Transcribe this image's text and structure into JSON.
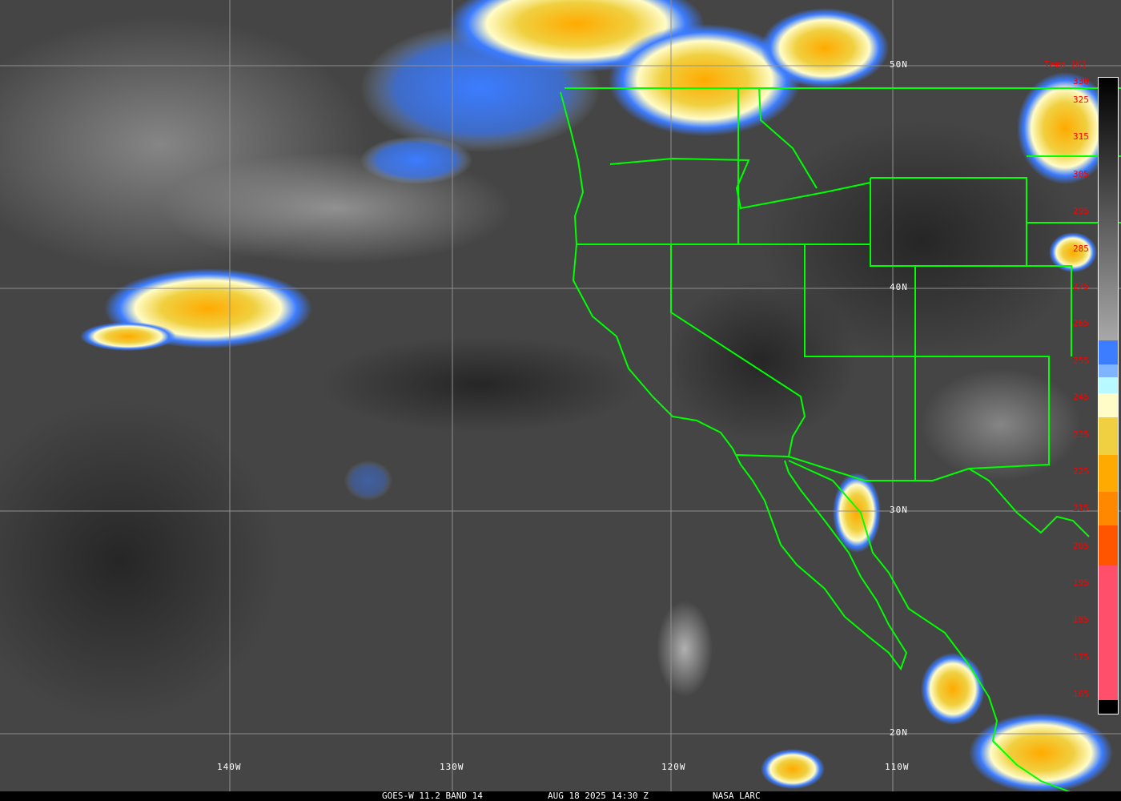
{
  "caption": {
    "satellite": "GOES-W 11.2 BAND 14",
    "datetime": "AUG 18 2025 14:30 Z",
    "source": "NASA LARC"
  },
  "grid": {
    "latitudes": [
      "50N",
      "40N",
      "30N",
      "20N"
    ],
    "longitudes": [
      "140W",
      "130W",
      "120W",
      "110W"
    ]
  },
  "legend": {
    "title": "Temp [K]",
    "ticks": [
      "330",
      "325",
      "315",
      "305",
      "295",
      "285",
      "275",
      "265",
      "255",
      "245",
      "235",
      "225",
      "215",
      "205",
      "195",
      "185",
      "175",
      "165"
    ],
    "colors": {
      "gray_top": "#000000",
      "gray_bottom": "#a8a8a8",
      "blue": "#3c7cff",
      "light_blue": "#7fb4ff",
      "cyan": "#b8f8ff",
      "cream": "#fffcc8",
      "yellow": "#f0d040",
      "orange": "#ffaa00",
      "dark_orange": "#ff8800",
      "red_orange": "#ff5500",
      "pink": "#ff4f6a"
    }
  },
  "colors": {
    "boundaries": "#00ff00",
    "grid": "#909090",
    "labels": "#ffffff"
  }
}
